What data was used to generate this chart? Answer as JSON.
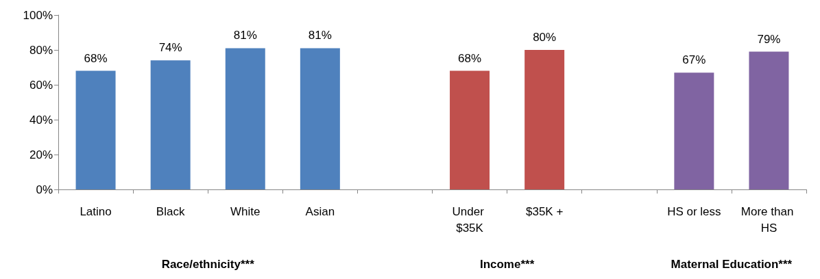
{
  "chart_data": {
    "type": "bar",
    "categories": [
      "Latino",
      "Black",
      "White",
      "Asian",
      null,
      "Under $35K",
      "$35K +",
      null,
      "HS or less",
      "More than HS"
    ],
    "values": [
      68,
      74,
      81,
      81,
      null,
      68,
      80,
      null,
      67,
      79
    ],
    "colors": [
      "#4f81bd",
      "#4f81bd",
      "#4f81bd",
      "#4f81bd",
      null,
      "#c0504d",
      "#c0504d",
      null,
      "#8064a2",
      "#8064a2"
    ],
    "value_labels": [
      "68%",
      "74%",
      "81%",
      "81%",
      null,
      "68%",
      "80%",
      null,
      "67%",
      "79%"
    ],
    "ylim": [
      0,
      100
    ],
    "yticks": [
      {
        "value": 0,
        "label": "0%"
      },
      {
        "value": 20,
        "label": "20%"
      },
      {
        "value": 40,
        "label": "40%"
      },
      {
        "value": 60,
        "label": "60%"
      },
      {
        "value": 80,
        "label": "80%"
      },
      {
        "value": 100,
        "label": "100%"
      }
    ],
    "annotations": [
      "Race/ethnicity***",
      "Income***",
      "Maternal Education***"
    ],
    "grid": false
  }
}
